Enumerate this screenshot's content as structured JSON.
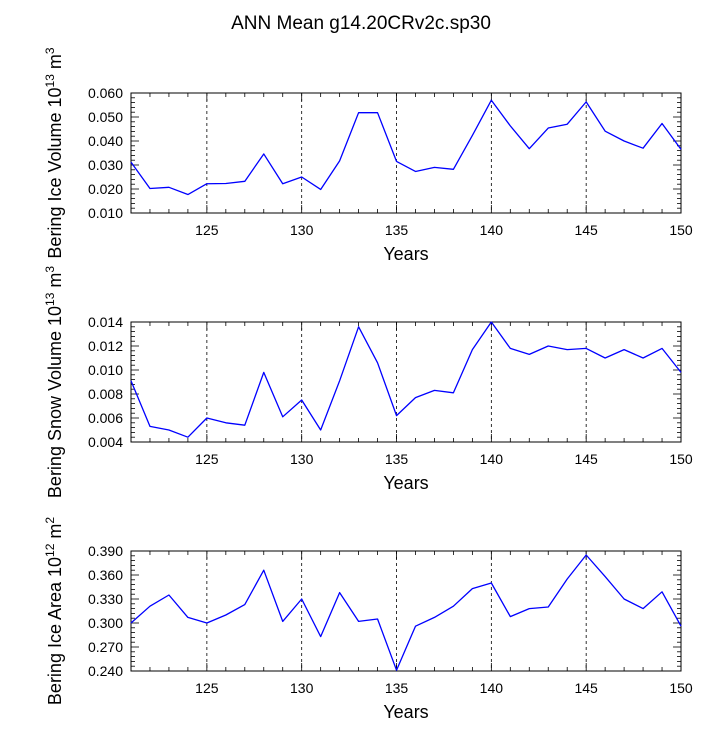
{
  "figure_title": "ANN Mean g14.20CRv2c.sp30",
  "colors": {
    "line": "#0000ff",
    "axis": "#000000",
    "grid": "#000000"
  },
  "chart_data": [
    {
      "type": "line",
      "id": "ice-volume",
      "ylabel": "Bering Ice Volume 10",
      "ylabel_sup": "13",
      "ylabel_unit": " m",
      "ylabel_unit_sup": "3",
      "xlabel": "Years",
      "xlim": [
        121,
        150
      ],
      "ylim": [
        0.01,
        0.06
      ],
      "xticks": [
        125,
        130,
        135,
        140,
        145,
        150
      ],
      "xtick_labels": [
        "125",
        "130",
        "135",
        "140",
        "145",
        "150"
      ],
      "yticks": [
        0.01,
        0.02,
        0.03,
        0.04,
        0.05,
        0.06
      ],
      "ytick_labels": [
        "0.010",
        "0.020",
        "0.030",
        "0.040",
        "0.050",
        "0.060"
      ],
      "grid_x": [
        125,
        130,
        135,
        140,
        145
      ],
      "x": [
        121,
        122,
        123,
        124,
        125,
        126,
        127,
        128,
        129,
        130,
        131,
        132,
        133,
        134,
        135,
        136,
        137,
        138,
        139,
        140,
        141,
        142,
        143,
        144,
        145,
        146,
        147,
        148,
        149,
        150
      ],
      "y": [
        0.0312,
        0.0202,
        0.0207,
        0.0177,
        0.0222,
        0.0223,
        0.0232,
        0.0346,
        0.0222,
        0.025,
        0.0198,
        0.0317,
        0.0518,
        0.0518,
        0.0315,
        0.0273,
        0.029,
        0.0282,
        0.0423,
        0.057,
        0.0463,
        0.0368,
        0.0454,
        0.047,
        0.0563,
        0.0441,
        0.04,
        0.037,
        0.0473,
        0.0365
      ]
    },
    {
      "type": "line",
      "id": "snow-volume",
      "ylabel": "Bering Snow Volume 10",
      "ylabel_sup": "13",
      "ylabel_unit": " m",
      "ylabel_unit_sup": "3",
      "xlabel": "Years",
      "xlim": [
        121,
        150
      ],
      "ylim": [
        0.004,
        0.014
      ],
      "xticks": [
        125,
        130,
        135,
        140,
        145,
        150
      ],
      "xtick_labels": [
        "125",
        "130",
        "135",
        "140",
        "145",
        "150"
      ],
      "yticks": [
        0.004,
        0.006,
        0.008,
        0.01,
        0.012,
        0.014
      ],
      "ytick_labels": [
        "0.004",
        "0.006",
        "0.008",
        "0.010",
        "0.012",
        "0.014"
      ],
      "grid_x": [
        125,
        130,
        135,
        140,
        145
      ],
      "x": [
        121,
        122,
        123,
        124,
        125,
        126,
        127,
        128,
        129,
        130,
        131,
        132,
        133,
        134,
        135,
        136,
        137,
        138,
        139,
        140,
        141,
        142,
        143,
        144,
        145,
        146,
        147,
        148,
        149,
        150
      ],
      "y": [
        0.0091,
        0.0053,
        0.005,
        0.0044,
        0.006,
        0.0056,
        0.0054,
        0.0098,
        0.0061,
        0.0075,
        0.005,
        0.0091,
        0.0136,
        0.0106,
        0.0062,
        0.0077,
        0.0083,
        0.0081,
        0.0117,
        0.014,
        0.0118,
        0.0113,
        0.012,
        0.0117,
        0.0118,
        0.011,
        0.0117,
        0.011,
        0.0118,
        0.0098
      ]
    },
    {
      "type": "line",
      "id": "ice-area",
      "ylabel": "Bering Ice Area 10",
      "ylabel_sup": "12",
      "ylabel_unit": " m",
      "ylabel_unit_sup": "2",
      "xlabel": "Years",
      "xlim": [
        121,
        150
      ],
      "ylim": [
        0.24,
        0.39
      ],
      "xticks": [
        125,
        130,
        135,
        140,
        145,
        150
      ],
      "xtick_labels": [
        "125",
        "130",
        "135",
        "140",
        "145",
        "150"
      ],
      "yticks": [
        0.24,
        0.27,
        0.3,
        0.33,
        0.36,
        0.39
      ],
      "ytick_labels": [
        "0.240",
        "0.270",
        "0.300",
        "0.330",
        "0.360",
        "0.390"
      ],
      "grid_x": [
        125,
        130,
        135,
        140,
        145
      ],
      "x": [
        121,
        122,
        123,
        124,
        125,
        126,
        127,
        128,
        129,
        130,
        131,
        132,
        133,
        134,
        135,
        136,
        137,
        138,
        139,
        140,
        141,
        142,
        143,
        144,
        145,
        146,
        147,
        148,
        149,
        150
      ],
      "y": [
        0.3,
        0.321,
        0.335,
        0.307,
        0.3,
        0.31,
        0.323,
        0.366,
        0.302,
        0.33,
        0.283,
        0.338,
        0.302,
        0.305,
        0.241,
        0.296,
        0.307,
        0.321,
        0.343,
        0.35,
        0.308,
        0.318,
        0.32,
        0.355,
        0.385,
        0.358,
        0.33,
        0.318,
        0.339,
        0.296
      ]
    }
  ]
}
